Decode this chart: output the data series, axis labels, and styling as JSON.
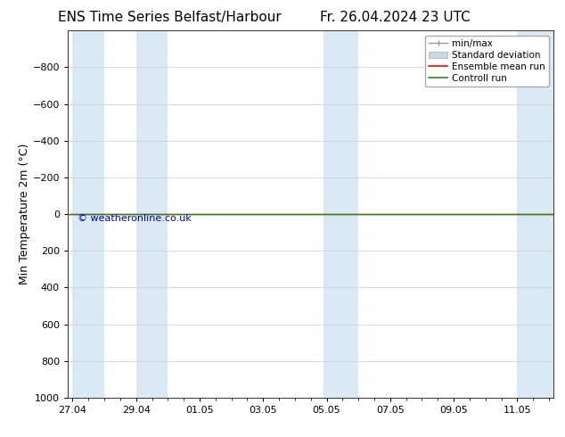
{
  "title_left": "ENS Time Series Belfast/Harbour",
  "title_right": "Fr. 26.04.2024 23 UTC",
  "ylabel": "Min Temperature 2m (°C)",
  "ylabel_fontsize": 9,
  "xlabel_ticks": [
    "27.04",
    "29.04",
    "01.05",
    "03.05",
    "05.05",
    "07.05",
    "09.05",
    "11.05"
  ],
  "xlabel_tick_positions": [
    0,
    2,
    4,
    6,
    8,
    10,
    12,
    14
  ],
  "ylim_bottom": 1000,
  "ylim_top": -1000,
  "yticks": [
    -800,
    -600,
    -400,
    -200,
    0,
    200,
    400,
    600,
    800,
    1000
  ],
  "shaded_band_color": "#daeaf5",
  "control_run_color": "#228B22",
  "ensemble_mean_color": "#ff0000",
  "minmax_color": "#999999",
  "std_fill_color": "#c5d8e8",
  "std_edge_color": "#aaaaaa",
  "background_color": "#ffffff",
  "plot_bg_color": "#ffffff",
  "title_fontsize": 11,
  "tick_fontsize": 8,
  "watermark": "© weatheronline.co.uk",
  "watermark_color": "#0000cc",
  "watermark_fontsize": 8,
  "legend_fontsize": 7.5,
  "x_min": -0.15,
  "x_max": 15.15,
  "band_pairs": [
    [
      0.0,
      1.0
    ],
    [
      2.0,
      3.0
    ],
    [
      7.9,
      9.0
    ],
    [
      14.0,
      15.15
    ]
  ]
}
